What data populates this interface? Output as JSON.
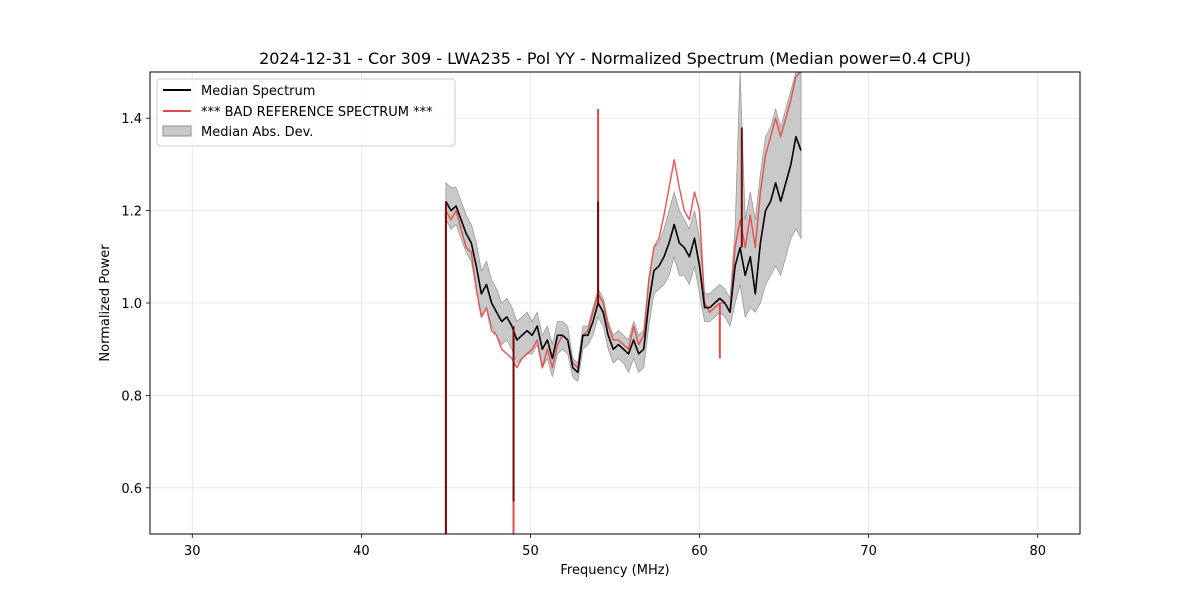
{
  "chart_data": {
    "type": "line",
    "title": "2024-12-31 - Cor 309 - LWA235 - Pol YY - Normalized Spectrum (Median power=0.4 CPU)",
    "xlabel": "Frequency (MHz)",
    "ylabel": "Normalized Power",
    "xlim": [
      27.5,
      82.5
    ],
    "ylim": [
      0.5,
      1.5
    ],
    "xticks": [
      30,
      40,
      50,
      60,
      70,
      80
    ],
    "xtick_labels": [
      "30",
      "40",
      "50",
      "60",
      "70",
      "80"
    ],
    "yticks": [
      0.6,
      0.8,
      1.0,
      1.2,
      1.4
    ],
    "ytick_labels": [
      "0.6",
      "0.8",
      "1.0",
      "1.2",
      "1.4"
    ],
    "grid": true,
    "legend_position": "top-left",
    "legend": [
      {
        "label": "Median Spectrum",
        "kind": "line",
        "color": "#000000"
      },
      {
        "label": "*** BAD REFERENCE SPECTRUM ***",
        "kind": "line",
        "color": "#e24a4a"
      },
      {
        "label": "Median Abs. Dev.",
        "kind": "band",
        "color": "#c9c9c9"
      }
    ],
    "series": [
      {
        "name": "Median Spectrum",
        "color": "#000000",
        "x": [
          45.0,
          45.3,
          45.6,
          45.9,
          46.2,
          46.5,
          46.8,
          47.1,
          47.4,
          47.7,
          48.0,
          48.3,
          48.6,
          48.9,
          49.2,
          49.5,
          49.8,
          50.1,
          50.4,
          50.7,
          51.0,
          51.3,
          51.6,
          51.9,
          52.2,
          52.5,
          52.8,
          53.1,
          53.4,
          53.7,
          54.0,
          54.3,
          54.6,
          54.9,
          55.2,
          55.5,
          55.8,
          56.1,
          56.4,
          56.7,
          57.0,
          57.3,
          57.6,
          57.9,
          58.2,
          58.5,
          58.8,
          59.1,
          59.4,
          59.7,
          60.0,
          60.3,
          60.6,
          60.9,
          61.2,
          61.5,
          61.8,
          62.1,
          62.4,
          62.7,
          63.0,
          63.3,
          63.6,
          63.9,
          64.2,
          64.5,
          64.8,
          65.1,
          65.4,
          65.7,
          66.0
        ],
        "y": [
          1.22,
          1.2,
          1.21,
          1.18,
          1.15,
          1.13,
          1.08,
          1.02,
          1.04,
          1.0,
          0.98,
          0.96,
          0.97,
          0.95,
          0.92,
          0.93,
          0.94,
          0.93,
          0.95,
          0.9,
          0.92,
          0.88,
          0.93,
          0.93,
          0.92,
          0.86,
          0.85,
          0.93,
          0.93,
          0.96,
          1.0,
          0.98,
          0.93,
          0.9,
          0.91,
          0.9,
          0.89,
          0.92,
          0.89,
          0.9,
          1.0,
          1.07,
          1.08,
          1.1,
          1.13,
          1.17,
          1.13,
          1.12,
          1.1,
          1.14,
          1.08,
          0.99,
          0.99,
          1.0,
          1.01,
          1.0,
          0.98,
          1.08,
          1.12,
          1.06,
          1.1,
          1.02,
          1.13,
          1.2,
          1.22,
          1.26,
          1.22,
          1.26,
          1.3,
          1.36,
          1.33
        ],
        "spikes": [
          {
            "x": 45.0,
            "y": 0.5
          },
          {
            "x": 49.0,
            "y": 0.57
          },
          {
            "x": 54.0,
            "y": 1.22
          },
          {
            "x": 62.5,
            "y": 1.38
          }
        ]
      },
      {
        "name": "*** BAD REFERENCE SPECTRUM ***",
        "color": "#e24a4a",
        "x": [
          45.0,
          45.3,
          45.6,
          45.9,
          46.2,
          46.5,
          46.8,
          47.1,
          47.4,
          47.7,
          48.0,
          48.3,
          48.6,
          48.9,
          49.2,
          49.5,
          49.8,
          50.1,
          50.4,
          50.7,
          51.0,
          51.3,
          51.6,
          51.9,
          52.2,
          52.5,
          52.8,
          53.1,
          53.4,
          53.7,
          54.0,
          54.3,
          54.6,
          54.9,
          55.2,
          55.5,
          55.8,
          56.1,
          56.4,
          56.7,
          57.0,
          57.3,
          57.6,
          57.9,
          58.2,
          58.5,
          58.8,
          59.1,
          59.4,
          59.7,
          60.0,
          60.3,
          60.6,
          60.9,
          61.2,
          61.5,
          61.8,
          62.1,
          62.4,
          62.7,
          63.0,
          63.3,
          63.6,
          63.9,
          64.2,
          64.5,
          64.8,
          65.1,
          65.4,
          65.7,
          66.0
        ],
        "y": [
          1.2,
          1.18,
          1.2,
          1.16,
          1.12,
          1.11,
          1.03,
          0.97,
          0.99,
          0.94,
          0.93,
          0.9,
          0.89,
          0.88,
          0.86,
          0.88,
          0.89,
          0.9,
          0.92,
          0.86,
          0.9,
          0.86,
          0.91,
          0.93,
          0.92,
          0.87,
          0.86,
          0.93,
          0.94,
          0.98,
          1.02,
          1.0,
          0.95,
          0.92,
          0.92,
          0.91,
          0.9,
          0.95,
          0.91,
          0.93,
          1.05,
          1.12,
          1.14,
          1.19,
          1.25,
          1.31,
          1.25,
          1.2,
          1.18,
          1.24,
          1.2,
          1.0,
          0.98,
          0.99,
          1.0,
          1.0,
          0.98,
          1.12,
          1.18,
          1.12,
          1.19,
          1.12,
          1.24,
          1.32,
          1.36,
          1.4,
          1.36,
          1.4,
          1.44,
          1.49,
          1.5
        ],
        "spikes": [
          {
            "x": 45.0,
            "y": 0.5
          },
          {
            "x": 49.0,
            "y": 0.5
          },
          {
            "x": 54.0,
            "y": 1.42
          },
          {
            "x": 61.2,
            "y": 0.88
          }
        ]
      }
    ],
    "band": {
      "name": "Median Abs. Dev.",
      "color": "#c9c9c9",
      "x": [
        45.0,
        45.3,
        45.6,
        45.9,
        46.2,
        46.5,
        46.8,
        47.1,
        47.4,
        47.7,
        48.0,
        48.3,
        48.6,
        48.9,
        49.2,
        49.5,
        49.8,
        50.1,
        50.4,
        50.7,
        51.0,
        51.3,
        51.6,
        51.9,
        52.2,
        52.5,
        52.8,
        53.1,
        53.4,
        53.7,
        54.0,
        54.3,
        54.6,
        54.9,
        55.2,
        55.5,
        55.8,
        56.1,
        56.4,
        56.7,
        57.0,
        57.3,
        57.6,
        57.9,
        58.2,
        58.5,
        58.8,
        59.1,
        59.4,
        59.7,
        60.0,
        60.3,
        60.6,
        60.9,
        61.2,
        61.5,
        61.8,
        62.1,
        62.4,
        62.7,
        63.0,
        63.3,
        63.6,
        63.9,
        64.2,
        64.5,
        64.8,
        65.1,
        65.4,
        65.7,
        66.0
      ],
      "upper": [
        1.26,
        1.25,
        1.25,
        1.22,
        1.19,
        1.17,
        1.13,
        1.07,
        1.09,
        1.05,
        1.03,
        1.0,
        1.01,
        0.99,
        0.96,
        0.97,
        0.98,
        0.96,
        0.98,
        0.93,
        0.95,
        0.91,
        0.96,
        0.96,
        0.95,
        0.88,
        0.87,
        0.95,
        0.95,
        0.99,
        1.03,
        1.01,
        0.96,
        0.93,
        0.94,
        0.93,
        0.92,
        0.96,
        0.93,
        0.94,
        1.05,
        1.12,
        1.13,
        1.16,
        1.2,
        1.24,
        1.2,
        1.18,
        1.16,
        1.2,
        1.14,
        1.02,
        1.02,
        1.03,
        1.04,
        1.03,
        1.01,
        1.16,
        1.5,
        1.18,
        1.24,
        1.18,
        1.28,
        1.36,
        1.38,
        1.42,
        1.38,
        1.42,
        1.46,
        1.5,
        1.5
      ],
      "lower": [
        1.18,
        1.16,
        1.17,
        1.14,
        1.11,
        1.09,
        1.03,
        0.97,
        0.99,
        0.95,
        0.93,
        0.91,
        0.92,
        0.9,
        0.87,
        0.88,
        0.89,
        0.89,
        0.91,
        0.86,
        0.88,
        0.84,
        0.89,
        0.9,
        0.89,
        0.84,
        0.83,
        0.9,
        0.91,
        0.93,
        0.97,
        0.95,
        0.9,
        0.87,
        0.88,
        0.87,
        0.85,
        0.88,
        0.85,
        0.86,
        0.95,
        1.02,
        1.03,
        1.04,
        1.06,
        1.1,
        1.06,
        1.06,
        1.04,
        1.08,
        1.02,
        0.96,
        0.96,
        0.97,
        0.98,
        0.97,
        0.95,
        1.0,
        1.04,
        0.97,
        0.99,
        0.98,
        1.0,
        1.04,
        1.06,
        1.08,
        1.06,
        1.1,
        1.14,
        1.16,
        1.14
      ]
    }
  }
}
